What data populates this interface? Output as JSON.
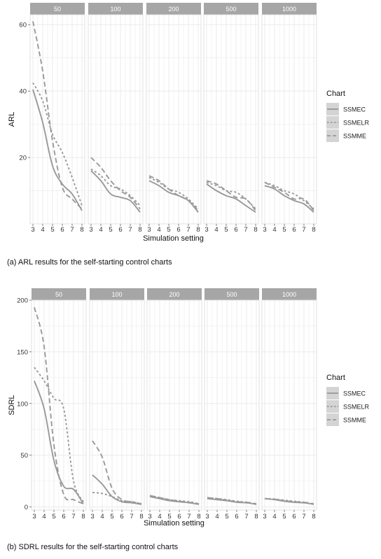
{
  "captions": {
    "a": "(a)  ARL results for the self-starting control charts",
    "b": "(b)  SDRL results for the self-starting control charts"
  },
  "legend": {
    "title": "Chart",
    "items": [
      "SSMEC",
      "SSMELR",
      "SSMME"
    ]
  },
  "colors": {
    "line": "#999999",
    "strip": "#a6a6a6",
    "grid": "#ebebeb",
    "panel_border": "#dadada"
  },
  "chart_data": [
    {
      "type": "line",
      "facet_by": "sample size",
      "panels": [
        "50",
        "100",
        "200",
        "500",
        "1000"
      ],
      "xlabel": "Simulation setting",
      "ylabel": "ARL",
      "x": [
        3,
        4,
        5,
        6,
        7,
        8
      ],
      "xlim": [
        3,
        8
      ],
      "ylim": [
        0,
        63
      ],
      "yticks": [
        20,
        40,
        60
      ],
      "series": [
        {
          "name": "SSMEC",
          "dash": "solid",
          "values": [
            [
              40.5,
              30.5,
              17.5,
              12,
              9,
              4
            ],
            [
              16,
              13,
              9,
              8,
              7,
              3.5
            ],
            [
              13,
              11.5,
              9.5,
              8.5,
              7,
              3.5
            ],
            [
              12,
              10,
              8.5,
              7.5,
              5.5,
              3.5
            ],
            [
              11.5,
              10.5,
              8.5,
              7,
              6,
              3.5
            ]
          ]
        },
        {
          "name": "SSMELR",
          "dash": "dotted",
          "values": [
            [
              42.5,
              37,
              27,
              21.5,
              14,
              5.5
            ],
            [
              16.5,
              14.5,
              11.5,
              10.5,
              8.5,
              5.5
            ],
            [
              14,
              12.5,
              10.5,
              9.5,
              7.5,
              4.5
            ],
            [
              12.5,
              11.5,
              10,
              9.5,
              7.5,
              4.5
            ],
            [
              12.5,
              11.5,
              10,
              9,
              7,
              4.5
            ]
          ]
        },
        {
          "name": "SSMME",
          "dash": "dashed",
          "values": [
            [
              61,
              46,
              25,
              11,
              7.5,
              4.5
            ],
            [
              20,
              17,
              13,
              10,
              8,
              4.5
            ],
            [
              14.5,
              13,
              10.5,
              8.5,
              7,
              4
            ],
            [
              13,
              12,
              10,
              8,
              7.5,
              4
            ],
            [
              12.5,
              11,
              9.5,
              7.5,
              7.5,
              4
            ]
          ]
        }
      ]
    },
    {
      "type": "line",
      "facet_by": "sample size",
      "panels": [
        "50",
        "100",
        "200",
        "500",
        "1000"
      ],
      "xlabel": "Simulation setting",
      "ylabel": "SDRL",
      "x": [
        3,
        4,
        5,
        6,
        7,
        8
      ],
      "xlim": [
        3,
        8
      ],
      "ylim": [
        -3,
        200
      ],
      "yticks": [
        0,
        50,
        100,
        150,
        200
      ],
      "series": [
        {
          "name": "SSMEC",
          "dash": "solid",
          "values": [
            [
              122,
              95,
              45,
              20,
              17,
              3
            ],
            [
              31,
              22,
              10,
              5,
              4,
              2.5
            ],
            [
              10,
              8,
              6,
              5,
              4,
              2.5
            ],
            [
              8,
              7,
              6,
              4.5,
              4,
              2.5
            ],
            [
              8,
              7,
              5.5,
              4.5,
              4,
              2.5
            ]
          ]
        },
        {
          "name": "SSMELR",
          "dash": "dotted",
          "values": [
            [
              135,
              122,
              105,
              95,
              25,
              5
            ],
            [
              14,
              13,
              10,
              6,
              5,
              3
            ],
            [
              11,
              9,
              7,
              6,
              5,
              3
            ],
            [
              9,
              8,
              7,
              5.5,
              4.5,
              3
            ],
            [
              8,
              7.5,
              6.5,
              5.5,
              4.5,
              3
            ]
          ]
        },
        {
          "name": "SSMME",
          "dash": "dashed",
          "values": [
            [
              193,
              155,
              60,
              12,
              7,
              3
            ],
            [
              64,
              48,
              18,
              7,
              5,
              3
            ],
            [
              11,
              9,
              7,
              5.5,
              4.5,
              3
            ],
            [
              9,
              8,
              6.5,
              5,
              4.5,
              3
            ],
            [
              8,
              7.5,
              6,
              5,
              4.5,
              3
            ]
          ]
        }
      ]
    }
  ]
}
